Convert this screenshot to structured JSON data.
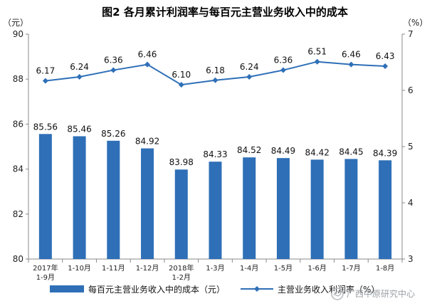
{
  "chart_data": {
    "type": "bar",
    "title": "图2  各月累计利润率与每百元主营业务收入中的成本",
    "categories": [
      "2017年 1-9月",
      "1-10月",
      "1-11月",
      "1-12月",
      "2018年 1-2月",
      "1-3月",
      "1-4月",
      "1-5月",
      "1-6月",
      "1-7月",
      "1-8月"
    ],
    "category_lines": [
      [
        "2017年",
        "1-9月"
      ],
      [
        "1-10月"
      ],
      [
        "1-11月"
      ],
      [
        "1-12月"
      ],
      [
        "2018年",
        "1-2月"
      ],
      [
        "1-3月"
      ],
      [
        "1-4月"
      ],
      [
        "1-5月"
      ],
      [
        "1-6月"
      ],
      [
        "1-7月"
      ],
      [
        "1-8月"
      ]
    ],
    "series": [
      {
        "name": "每百元主营业务收入中的成本（元）",
        "type": "bar",
        "axis": "left",
        "color": "#2e6fb7",
        "values": [
          85.56,
          85.46,
          85.26,
          84.92,
          83.98,
          84.33,
          84.52,
          84.49,
          84.42,
          84.45,
          84.39
        ]
      },
      {
        "name": "主营业务收入利润率（%）",
        "type": "line",
        "axis": "right",
        "color": "#2e6fb7",
        "values": [
          6.17,
          6.24,
          6.36,
          6.46,
          6.1,
          6.18,
          6.24,
          6.36,
          6.51,
          6.46,
          6.43
        ]
      }
    ],
    "y_left": {
      "unit_label": "（元）",
      "ylim": [
        80,
        90
      ],
      "ticks": [
        80,
        82,
        84,
        86,
        88,
        90
      ]
    },
    "y_right": {
      "unit_label": "（%）",
      "ylim": [
        3,
        7
      ],
      "ticks": [
        3,
        4,
        5,
        6,
        7
      ]
    },
    "grid": false,
    "legend_position": "bottom"
  },
  "watermark": {
    "text": "广西中原研究中心"
  }
}
